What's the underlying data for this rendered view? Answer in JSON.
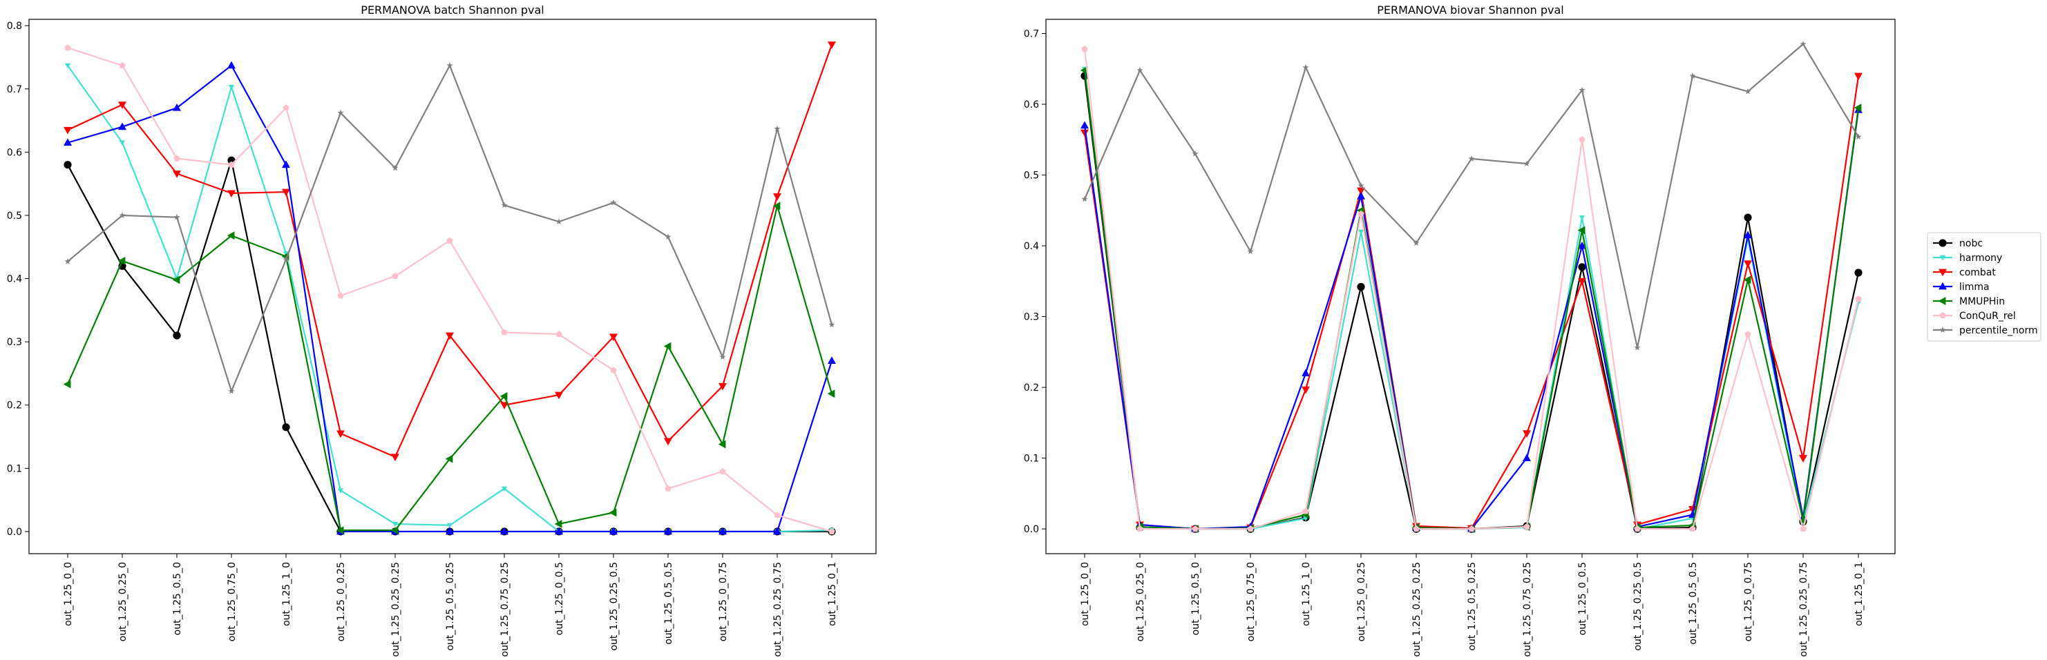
{
  "chart_data": [
    {
      "type": "line",
      "title": "PERMANOVA batch Shannon pval",
      "xlabel": "",
      "ylabel": "",
      "ylim": [
        -0.035,
        0.81
      ],
      "yticks": [
        0.0,
        0.1,
        0.2,
        0.3,
        0.4,
        0.5,
        0.6,
        0.7,
        0.8
      ],
      "ytick_labels": [
        "0.0",
        "0.1",
        "0.2",
        "0.3",
        "0.4",
        "0.5",
        "0.6",
        "0.7",
        "0.8"
      ],
      "grid": false,
      "categories": [
        "out_1.25_0_0",
        "out_1.25_0.25_0",
        "out_1.25_0.5_0",
        "out_1.25_0.75_0",
        "out_1.25_1_0",
        "out_1.25_0_0.25",
        "out_1.25_0.25_0.25",
        "out_1.25_0.5_0.25",
        "out_1.25_0.75_0.25",
        "out_1.25_0_0.5",
        "out_1.25_0.25_0.5",
        "out_1.25_0.5_0.5",
        "out_1.25_0_0.75",
        "out_1.25_0.25_0.75",
        "out_1.25_0_1"
      ],
      "series": [
        {
          "name": "nobc",
          "color": "#000000",
          "marker": "circle",
          "values": [
            0.58,
            0.42,
            0.31,
            0.587,
            0.165,
            0.0,
            0.0,
            0.0,
            0.0,
            0.0,
            0.0,
            0.0,
            0.0,
            0.0,
            0.0
          ]
        },
        {
          "name": "harmony",
          "color": "#40e0d0",
          "marker": "tri_down_small",
          "values": [
            0.737,
            0.615,
            0.4,
            0.703,
            0.44,
            0.065,
            0.012,
            0.01,
            0.068,
            0.0,
            0.0,
            0.0,
            0.0,
            0.0,
            0.002
          ]
        },
        {
          "name": "combat",
          "color": "#ff0000",
          "marker": "triangle_down",
          "values": [
            0.635,
            0.675,
            0.566,
            0.535,
            0.537,
            0.155,
            0.118,
            0.31,
            0.2,
            0.216,
            0.308,
            0.143,
            0.23,
            0.53,
            0.77
          ]
        },
        {
          "name": "limma",
          "color": "#0000ff",
          "marker": "triangle_up",
          "values": [
            0.615,
            0.64,
            0.67,
            0.737,
            0.58,
            0.0,
            0.0,
            0.0,
            0.0,
            0.0,
            0.0,
            0.0,
            0.0,
            0.0,
            0.27
          ]
        },
        {
          "name": "MMUPHin",
          "color": "#008000",
          "marker": "triangle_left",
          "values": [
            0.233,
            0.428,
            0.398,
            0.468,
            0.435,
            0.002,
            0.002,
            0.115,
            0.214,
            0.012,
            0.03,
            0.293,
            0.138,
            0.515,
            0.218
          ]
        },
        {
          "name": "ConQuR_rel",
          "color": "#ffc0cb",
          "marker": "pentagon",
          "values": [
            0.765,
            0.737,
            0.59,
            0.58,
            0.67,
            0.373,
            0.404,
            0.46,
            0.315,
            0.312,
            0.255,
            0.068,
            0.095,
            0.026,
            0.0
          ]
        },
        {
          "name": "percentile_norm",
          "color": "#808080",
          "marker": "star",
          "values": [
            0.427,
            0.5,
            0.497,
            0.222,
            0.43,
            0.662,
            0.575,
            0.737,
            0.516,
            0.49,
            0.52,
            0.466,
            0.276,
            0.637,
            0.327
          ]
        }
      ]
    },
    {
      "type": "line",
      "title": "PERMANOVA biovar Shannon pval",
      "xlabel": "",
      "ylabel": "",
      "ylim": [
        -0.035,
        0.72
      ],
      "yticks": [
        0.0,
        0.1,
        0.2,
        0.3,
        0.4,
        0.5,
        0.6,
        0.7
      ],
      "ytick_labels": [
        "0.0",
        "0.1",
        "0.2",
        "0.3",
        "0.4",
        "0.5",
        "0.6",
        "0.7"
      ],
      "grid": false,
      "categories": [
        "out_1.25_0_0",
        "out_1.25_0.25_0",
        "out_1.25_0.5_0",
        "out_1.25_0.75_0",
        "out_1.25_1_0",
        "out_1.25_0_0.25",
        "out_1.25_0.25_0.25",
        "out_1.25_0.5_0.25",
        "out_1.25_0.75_0.25",
        "out_1.25_0_0.5",
        "out_1.25_0.25_0.5",
        "out_1.25_0.5_0.5",
        "out_1.25_0_0.75",
        "out_1.25_0.25_0.75",
        "out_1.25_0_1"
      ],
      "series": [
        {
          "name": "nobc",
          "color": "#000000",
          "marker": "circle",
          "values": [
            0.64,
            0.002,
            0.0,
            0.0,
            0.016,
            0.342,
            0.0,
            0.0,
            0.004,
            0.37,
            0.0,
            0.002,
            0.44,
            0.01,
            0.362
          ]
        },
        {
          "name": "harmony",
          "color": "#40e0d0",
          "marker": "tri_down_small",
          "values": [
            0.65,
            0.002,
            0.0,
            0.0,
            0.015,
            0.42,
            0.0,
            0.0,
            0.002,
            0.44,
            0.0,
            0.015,
            0.41,
            0.01,
            0.32
          ]
        },
        {
          "name": "combat",
          "color": "#ff0000",
          "marker": "triangle_down",
          "values": [
            0.56,
            0.006,
            0.0,
            0.002,
            0.197,
            0.478,
            0.004,
            0.001,
            0.135,
            0.35,
            0.006,
            0.028,
            0.375,
            0.1,
            0.64
          ]
        },
        {
          "name": "limma",
          "color": "#0000ff",
          "marker": "triangle_up",
          "values": [
            0.57,
            0.006,
            0.0,
            0.003,
            0.22,
            0.47,
            0.002,
            0.0,
            0.1,
            0.4,
            0.003,
            0.02,
            0.415,
            0.016,
            0.592
          ]
        },
        {
          "name": "MMUPHin",
          "color": "#008000",
          "marker": "triangle_left",
          "values": [
            0.648,
            0.003,
            0.0,
            0.001,
            0.02,
            0.45,
            0.002,
            0.0,
            0.003,
            0.422,
            0.002,
            0.005,
            0.352,
            0.012,
            0.595
          ]
        },
        {
          "name": "ConQuR_rel",
          "color": "#ffc0cb",
          "marker": "pentagon",
          "values": [
            0.678,
            0.0,
            0.0,
            0.0,
            0.025,
            0.445,
            0.0,
            0.0,
            0.003,
            0.55,
            0.0,
            0.0,
            0.275,
            0.0,
            0.325
          ]
        },
        {
          "name": "percentile_norm",
          "color": "#808080",
          "marker": "star",
          "values": [
            0.466,
            0.648,
            0.53,
            0.392,
            0.652,
            0.485,
            0.404,
            0.523,
            0.516,
            0.62,
            0.256,
            0.64,
            0.618,
            0.685,
            0.554
          ]
        }
      ],
      "legend": {
        "placement": "outside-right",
        "entries": [
          "nobc",
          "harmony",
          "combat",
          "limma",
          "MMUPHin",
          "ConQuR_rel",
          "percentile_norm"
        ]
      }
    }
  ]
}
